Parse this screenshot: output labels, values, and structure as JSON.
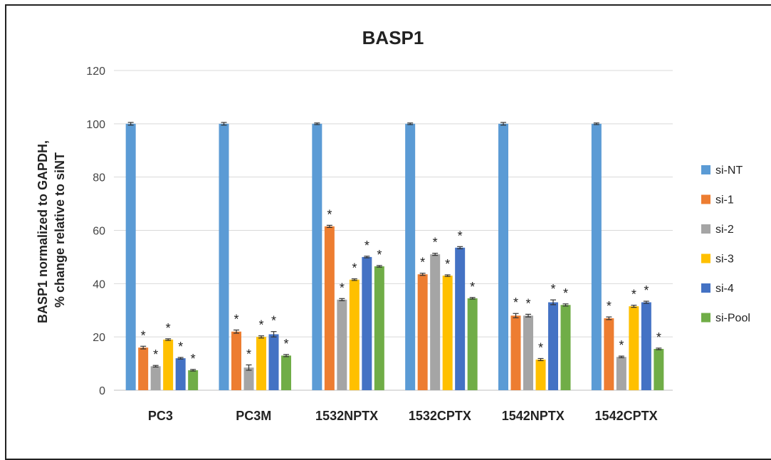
{
  "chart_data": {
    "type": "bar",
    "title": "BASP1",
    "ylabel_line1": "BASP1 normalized to GAPDH,",
    "ylabel_line2": "% change relative to siNT",
    "xlabel": "",
    "ylim": [
      0,
      120
    ],
    "yticks": [
      0,
      20,
      40,
      60,
      80,
      100,
      120
    ],
    "grid": true,
    "legend_position": "right",
    "categories": [
      "PC3",
      "PC3M",
      "1532NPTX",
      "1532CPTX",
      "1542NPTX",
      "1542CPTX"
    ],
    "series": [
      {
        "name": "si-NT",
        "color": "#5B9BD5",
        "values": [
          100,
          100,
          100,
          100,
          100,
          100
        ],
        "errors": [
          0.5,
          0.5,
          0.3,
          0.3,
          0.5,
          0.3
        ],
        "significant": [
          false,
          false,
          false,
          false,
          false,
          false
        ]
      },
      {
        "name": "si-1",
        "color": "#ED7D31",
        "values": [
          16,
          22,
          61.5,
          43.5,
          28,
          27
        ],
        "errors": [
          0.5,
          0.6,
          0.4,
          0.4,
          0.8,
          0.5
        ],
        "significant": [
          true,
          true,
          true,
          true,
          true,
          true
        ]
      },
      {
        "name": "si-2",
        "color": "#A5A5A5",
        "values": [
          9,
          8.5,
          34,
          51,
          28,
          12.5
        ],
        "errors": [
          0.3,
          1.0,
          0.4,
          0.4,
          0.5,
          0.3
        ],
        "significant": [
          true,
          true,
          true,
          true,
          true,
          true
        ]
      },
      {
        "name": "si-3",
        "color": "#FFC000",
        "values": [
          19,
          20,
          41.5,
          43,
          11.5,
          31.5
        ],
        "errors": [
          0.3,
          0.4,
          0.3,
          0.3,
          0.4,
          0.4
        ],
        "significant": [
          true,
          true,
          true,
          true,
          true,
          true
        ]
      },
      {
        "name": "si-4",
        "color": "#4472C4",
        "values": [
          12,
          21,
          50,
          53.5,
          33,
          33
        ],
        "errors": [
          0.3,
          1.0,
          0.3,
          0.4,
          0.9,
          0.4
        ],
        "significant": [
          true,
          true,
          true,
          true,
          true,
          true
        ]
      },
      {
        "name": "si-Pool",
        "color": "#70AD47",
        "values": [
          7.5,
          13,
          46.5,
          34.5,
          32,
          15.5
        ],
        "errors": [
          0.3,
          0.4,
          0.3,
          0.3,
          0.4,
          0.3
        ],
        "significant": [
          true,
          true,
          true,
          true,
          true,
          true
        ]
      }
    ],
    "significance_marker": "*"
  }
}
